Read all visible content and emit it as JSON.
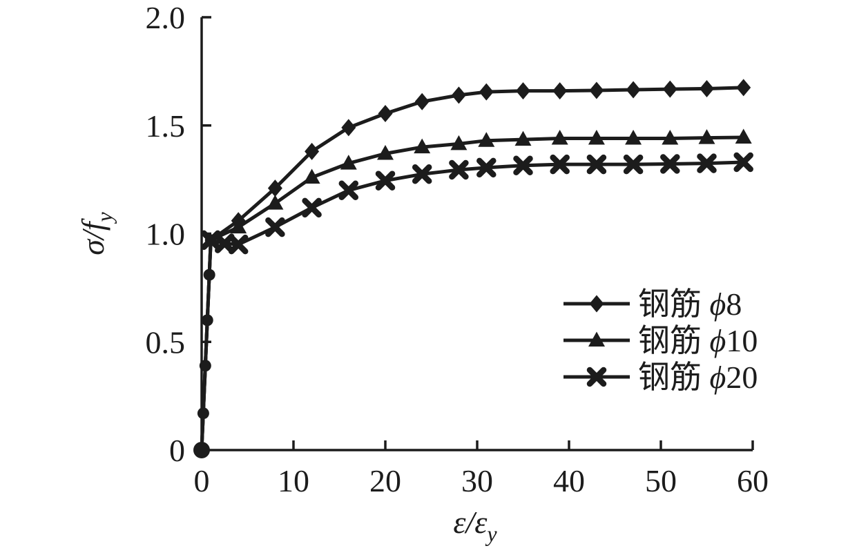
{
  "figure": {
    "background": "#ffffff",
    "ink_color": "#1c1c1c"
  },
  "chart_data": {
    "type": "line",
    "title": "",
    "xlabel": "ε/εy",
    "ylabel": "σ/fy",
    "xlabel_parts": {
      "main": "ε/ε",
      "sub": "y"
    },
    "ylabel_parts": {
      "main": "σ/f",
      "sub": "y"
    },
    "xlim": [
      0,
      60
    ],
    "ylim": [
      0,
      2.0
    ],
    "x_ticks": [
      0,
      10,
      20,
      30,
      40,
      50,
      60
    ],
    "x_tick_labels": [
      "0",
      "10",
      "20",
      "30",
      "40",
      "50",
      "60"
    ],
    "y_ticks": [
      0,
      0.5,
      1.0,
      1.5,
      2.0
    ],
    "y_tick_labels": [
      "0",
      "0.5",
      "1.0",
      "1.5",
      "2.0"
    ],
    "grid": false,
    "legend_position": "inside-right",
    "line_color": "#1c1c1c",
    "shared_rise_markers": {
      "shape": "circle",
      "points": [
        [
          0,
          0
        ],
        [
          0.18,
          0.17
        ],
        [
          0.4,
          0.39
        ],
        [
          0.62,
          0.6
        ],
        [
          0.84,
          0.81
        ],
        [
          1.0,
          0.97
        ]
      ]
    },
    "series": [
      {
        "key": "phi8",
        "label": "钢筋 ϕ8",
        "marker": "diamond",
        "marker_min_x": 3.5,
        "x": [
          0,
          1,
          4,
          8,
          12,
          16,
          20,
          24,
          28,
          31,
          35,
          39,
          43,
          47,
          51,
          55,
          59
        ],
        "y": [
          0,
          0.97,
          1.06,
          1.21,
          1.38,
          1.49,
          1.555,
          1.61,
          1.64,
          1.655,
          1.66,
          1.66,
          1.662,
          1.665,
          1.668,
          1.67,
          1.675
        ]
      },
      {
        "key": "phi10",
        "label": "钢筋 ϕ10",
        "marker": "triangle",
        "marker_min_x": 3.5,
        "x": [
          0,
          1,
          4,
          8,
          12,
          16,
          20,
          24,
          28,
          31,
          35,
          39,
          43,
          47,
          51,
          55,
          59
        ],
        "y": [
          0,
          0.97,
          1.03,
          1.14,
          1.26,
          1.325,
          1.37,
          1.4,
          1.415,
          1.43,
          1.435,
          1.44,
          1.44,
          1.44,
          1.44,
          1.443,
          1.445
        ]
      },
      {
        "key": "phi20",
        "label": "钢筋 ϕ20",
        "marker": "x-cross",
        "marker_min_x": 0.9,
        "x": [
          0,
          1,
          2.5,
          4,
          8,
          12,
          16,
          20,
          24,
          28,
          31,
          35,
          39,
          43,
          47,
          51,
          55,
          59
        ],
        "y": [
          0,
          0.97,
          0.955,
          0.95,
          1.03,
          1.12,
          1.2,
          1.245,
          1.275,
          1.295,
          1.305,
          1.315,
          1.32,
          1.32,
          1.32,
          1.322,
          1.325,
          1.33
        ]
      }
    ],
    "legend": [
      {
        "key": "phi8",
        "name_cn": "钢筋",
        "phi": "ϕ",
        "dia": "8"
      },
      {
        "key": "phi10",
        "name_cn": "钢筋",
        "phi": "ϕ",
        "dia": "10"
      },
      {
        "key": "phi20",
        "name_cn": "钢筋",
        "phi": "ϕ",
        "dia": "20"
      }
    ]
  }
}
